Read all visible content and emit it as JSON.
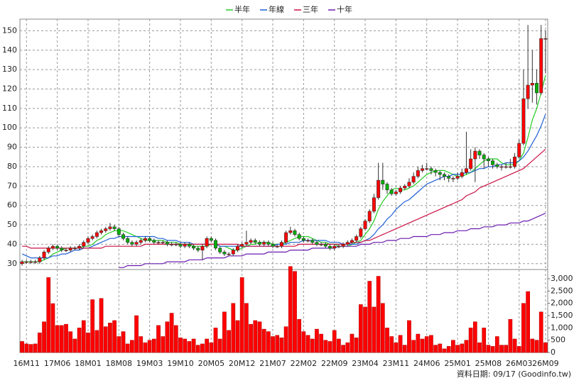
{
  "chart_data": {
    "type": "candlestick",
    "categories": [
      null,
      "16M11",
      null,
      null,
      null,
      null,
      null,
      null,
      "17M06",
      null,
      null,
      null,
      null,
      null,
      null,
      "18M01",
      null,
      null,
      null,
      null,
      null,
      null,
      "18M08",
      null,
      null,
      null,
      null,
      null,
      null,
      "19M03",
      null,
      null,
      null,
      null,
      null,
      null,
      "19M10",
      null,
      null,
      null,
      null,
      null,
      null,
      "20M05",
      null,
      null,
      null,
      null,
      null,
      null,
      "20M12",
      null,
      null,
      null,
      null,
      null,
      null,
      "21M07",
      null,
      null,
      null,
      null,
      null,
      null,
      "22M02",
      null,
      null,
      null,
      null,
      null,
      null,
      "22M09",
      null,
      null,
      null,
      null,
      null,
      null,
      "23M04",
      null,
      null,
      null,
      null,
      null,
      null,
      "23M11",
      null,
      null,
      null,
      null,
      null,
      null,
      "24M06",
      null,
      null,
      null,
      null,
      null,
      null,
      "25M01",
      null,
      null,
      null,
      null,
      null,
      null,
      "25M08",
      null,
      null,
      null,
      null,
      null,
      null,
      "26M03",
      null,
      null,
      null,
      null,
      null,
      "26M09"
    ],
    "ohlc": {
      "up_color": "#ff0000",
      "down_color": "#00b000",
      "open": [
        30,
        31,
        31,
        31,
        31,
        33,
        36,
        38,
        39,
        38,
        37,
        37,
        38,
        38,
        39,
        41,
        43,
        44,
        46,
        47,
        48,
        49,
        48,
        45,
        43,
        41,
        40,
        41,
        42,
        43,
        42,
        41,
        41,
        41,
        40,
        40,
        40,
        39,
        40,
        39,
        38,
        37,
        39,
        43,
        42,
        38,
        36,
        35,
        35,
        37,
        39,
        40,
        41,
        42,
        41,
        40,
        41,
        40,
        39,
        39,
        41,
        46,
        47,
        45,
        43,
        42,
        42,
        41,
        40,
        40,
        39,
        38,
        39,
        39,
        40,
        41,
        42,
        44,
        48,
        52,
        57,
        64,
        73,
        71,
        68,
        66,
        67,
        69,
        70,
        72,
        75,
        78,
        79,
        79,
        78,
        77,
        76,
        75,
        74,
        74,
        75,
        77,
        79,
        84,
        88,
        86,
        84,
        83,
        81,
        80,
        80,
        80,
        80,
        85,
        92,
        115,
        122,
        123,
        118,
        146
      ],
      "high": [
        32,
        32,
        32,
        32,
        34,
        37,
        39,
        40,
        40,
        39,
        38,
        39,
        39,
        40,
        42,
        44,
        45,
        47,
        48,
        49,
        51,
        50,
        49,
        46,
        44,
        42,
        42,
        43,
        44,
        44,
        43,
        42,
        42,
        42,
        41,
        41,
        41,
        41,
        41,
        40,
        39,
        40,
        44,
        44,
        43,
        39,
        37,
        36,
        38,
        40,
        41,
        47,
        43,
        43,
        42,
        42,
        42,
        41,
        40,
        42,
        47,
        49,
        48,
        46,
        44,
        43,
        43,
        42,
        41,
        41,
        40,
        40,
        40,
        41,
        42,
        43,
        45,
        49,
        53,
        58,
        66,
        82,
        82,
        72,
        69,
        68,
        70,
        71,
        74,
        77,
        80,
        81,
        82,
        80,
        79,
        78,
        77,
        76,
        75,
        77,
        79,
        98,
        89,
        90,
        89,
        87,
        85,
        84,
        82,
        81,
        82,
        84,
        87,
        94,
        130,
        153,
        140,
        130,
        153,
        150
      ],
      "low": [
        29,
        30,
        30,
        30,
        30,
        32,
        35,
        37,
        37,
        36,
        36,
        36,
        37,
        37,
        38,
        40,
        42,
        43,
        45,
        46,
        47,
        47,
        44,
        42,
        40,
        39,
        39,
        40,
        41,
        41,
        40,
        40,
        40,
        39,
        39,
        39,
        38,
        38,
        38,
        37,
        36,
        32,
        38,
        41,
        37,
        35,
        34,
        34,
        34,
        36,
        38,
        39,
        40,
        40,
        39,
        39,
        39,
        38,
        38,
        38,
        40,
        45,
        44,
        42,
        41,
        41,
        40,
        39,
        39,
        38,
        37,
        37,
        38,
        38,
        39,
        40,
        41,
        43,
        47,
        51,
        56,
        63,
        68,
        66,
        65,
        65,
        66,
        68,
        69,
        71,
        74,
        77,
        78,
        76,
        75,
        73,
        73,
        72,
        72,
        73,
        74,
        76,
        78,
        72,
        84,
        79,
        80,
        79,
        79,
        78,
        79,
        79,
        79,
        84,
        91,
        110,
        113,
        112,
        117,
        128
      ],
      "close": [
        31,
        31,
        31,
        31,
        33,
        36,
        38,
        39,
        38,
        37,
        37,
        38,
        38,
        39,
        41,
        43,
        44,
        46,
        47,
        48,
        49,
        48,
        45,
        43,
        41,
        40,
        41,
        42,
        43,
        42,
        41,
        41,
        41,
        40,
        40,
        40,
        39,
        40,
        39,
        38,
        37,
        39,
        43,
        42,
        38,
        36,
        35,
        35,
        37,
        39,
        40,
        41,
        42,
        41,
        40,
        41,
        40,
        39,
        39,
        41,
        46,
        47,
        45,
        43,
        42,
        42,
        41,
        40,
        40,
        39,
        38,
        39,
        39,
        40,
        41,
        42,
        44,
        48,
        52,
        57,
        64,
        73,
        71,
        68,
        66,
        67,
        69,
        70,
        72,
        75,
        78,
        79,
        79,
        78,
        77,
        76,
        75,
        74,
        74,
        75,
        77,
        79,
        84,
        88,
        86,
        84,
        83,
        81,
        80,
        80,
        80,
        80,
        85,
        92,
        115,
        122,
        123,
        118,
        146,
        146
      ]
    },
    "volume": {
      "color": "#ff0000",
      "values": [
        450,
        350,
        330,
        350,
        800,
        1250,
        3050,
        1990,
        1100,
        1100,
        1150,
        850,
        550,
        1000,
        1300,
        800,
        2150,
        900,
        2200,
        1050,
        1200,
        1300,
        650,
        850,
        350,
        500,
        1500,
        650,
        400,
        500,
        550,
        1100,
        650,
        1250,
        1600,
        1100,
        600,
        550,
        450,
        550,
        300,
        350,
        550,
        400,
        1000,
        550,
        1650,
        900,
        2000,
        1300,
        3050,
        2000,
        1150,
        1300,
        1250,
        950,
        850,
        650,
        700,
        600,
        1050,
        3500,
        3300,
        1350,
        850,
        700,
        550,
        950,
        750,
        500,
        450,
        900,
        550,
        300,
        400,
        750,
        600,
        1950,
        1850,
        2900,
        1850,
        3100,
        2000,
        1000,
        650,
        400,
        700,
        300,
        1300,
        500,
        750,
        550,
        650,
        700,
        300,
        350,
        150,
        250,
        500,
        300,
        350,
        500,
        1000,
        1250,
        400,
        1000,
        300,
        250,
        650,
        300,
        300,
        1350,
        550,
        250,
        2000,
        2480,
        550,
        500,
        1650,
        400
      ]
    },
    "series": [
      {
        "name": "半年",
        "color": "#22cc22",
        "values": [
          31,
          31,
          31,
          31,
          31,
          32,
          33,
          35,
          36,
          37,
          38,
          38,
          38,
          38,
          39,
          39,
          40,
          42,
          43,
          45,
          46,
          47,
          47,
          47,
          46,
          45,
          44,
          43,
          42,
          42,
          42,
          42,
          42,
          41,
          41,
          41,
          40,
          40,
          40,
          39,
          39,
          39,
          39,
          40,
          40,
          39,
          39,
          38,
          37,
          37,
          38,
          39,
          40,
          40,
          41,
          41,
          41,
          40,
          40,
          40,
          41,
          42,
          43,
          44,
          44,
          44,
          43,
          42,
          41,
          41,
          40,
          40,
          39,
          39,
          39,
          40,
          41,
          42,
          45,
          48,
          52,
          58,
          62,
          65,
          68,
          69,
          68,
          68,
          69,
          70,
          72,
          74,
          76,
          77,
          78,
          78,
          78,
          77,
          76,
          75,
          75,
          76,
          77,
          79,
          81,
          83,
          84,
          84,
          84,
          82,
          81,
          81,
          81,
          83,
          87,
          95,
          104,
          110,
          118,
          127
        ]
      },
      {
        "name": "年線",
        "color": "#1f5fd6",
        "values": [
          35,
          34,
          33,
          33,
          33,
          33,
          33,
          34,
          34,
          35,
          35,
          36,
          37,
          37,
          38,
          38,
          39,
          40,
          41,
          42,
          43,
          43,
          44,
          44,
          44,
          44,
          44,
          44,
          44,
          44,
          44,
          43,
          43,
          42,
          42,
          42,
          41,
          41,
          41,
          40,
          40,
          40,
          40,
          40,
          40,
          39,
          39,
          39,
          39,
          39,
          39,
          39,
          39,
          39,
          39,
          39,
          39,
          39,
          40,
          40,
          40,
          41,
          41,
          41,
          42,
          42,
          42,
          42,
          42,
          42,
          41,
          41,
          41,
          40,
          40,
          40,
          40,
          41,
          42,
          43,
          45,
          48,
          50,
          53,
          55,
          58,
          60,
          62,
          63,
          65,
          67,
          69,
          71,
          72,
          73,
          74,
          75,
          75,
          76,
          76,
          76,
          77,
          77,
          78,
          79,
          79,
          80,
          80,
          81,
          81,
          82,
          82,
          82,
          83,
          85,
          88,
          92,
          96,
          101,
          107
        ]
      },
      {
        "name": "三年",
        "color": "#cc1144",
        "values": [
          39,
          39,
          38,
          38,
          38,
          38,
          38,
          38,
          38,
          38,
          38,
          38,
          38,
          38,
          38,
          38,
          38,
          38,
          38,
          39,
          39,
          39,
          39,
          39,
          39,
          39,
          39,
          39,
          40,
          40,
          40,
          40,
          40,
          40,
          40,
          40,
          40,
          40,
          40,
          40,
          40,
          40,
          40,
          40,
          40,
          40,
          40,
          40,
          40,
          40,
          39,
          39,
          39,
          39,
          39,
          39,
          39,
          39,
          39,
          39,
          39,
          39,
          39,
          40,
          40,
          40,
          40,
          40,
          40,
          40,
          40,
          40,
          40,
          40,
          40,
          41,
          41,
          41,
          42,
          42,
          43,
          44,
          45,
          46,
          47,
          48,
          49,
          50,
          51,
          52,
          53,
          54,
          55,
          56,
          57,
          58,
          59,
          60,
          61,
          62,
          63,
          65,
          66,
          67,
          69,
          70,
          71,
          72,
          73,
          74,
          75,
          76,
          77,
          78,
          79,
          81,
          83,
          85,
          87,
          89
        ]
      },
      {
        "name": "十年",
        "color": "#6a1bb0",
        "values": [
          null,
          null,
          null,
          null,
          null,
          null,
          null,
          null,
          null,
          null,
          null,
          null,
          null,
          null,
          null,
          null,
          null,
          null,
          null,
          null,
          null,
          null,
          28,
          28,
          29,
          29,
          29,
          29,
          30,
          30,
          30,
          30,
          30,
          31,
          31,
          31,
          31,
          31,
          32,
          32,
          32,
          32,
          33,
          33,
          33,
          33,
          33,
          34,
          34,
          34,
          34,
          35,
          35,
          35,
          35,
          35,
          36,
          36,
          36,
          36,
          36,
          37,
          37,
          37,
          37,
          37,
          38,
          38,
          38,
          38,
          38,
          38,
          39,
          39,
          39,
          39,
          39,
          40,
          40,
          40,
          41,
          41,
          41,
          42,
          42,
          42,
          43,
          43,
          43,
          44,
          44,
          44,
          44,
          45,
          45,
          45,
          46,
          46,
          46,
          47,
          47,
          47,
          48,
          48,
          48,
          49,
          49,
          49,
          50,
          50,
          50,
          51,
          51,
          51,
          52,
          52,
          53,
          54,
          55,
          56
        ]
      }
    ],
    "ylim": [
      27,
      156
    ],
    "yticks": [
      30,
      40,
      50,
      60,
      70,
      80,
      90,
      100,
      110,
      120,
      130,
      140,
      150
    ],
    "y2lim": [
      0,
      3375
    ],
    "y2ticks": [
      0,
      500,
      {
        "value": 1000,
        "label": "1,000"
      },
      {
        "value": 1500,
        "label": "1,500"
      },
      {
        "value": 2000,
        "label": "2,000"
      },
      {
        "value": 2500,
        "label": "2,500"
      },
      {
        "value": 3000,
        "label": "3,000"
      }
    ],
    "grid": true,
    "legend": "top",
    "date_note": "資料日期: 09/17",
    "source": "(Goodinfo.tw)"
  }
}
